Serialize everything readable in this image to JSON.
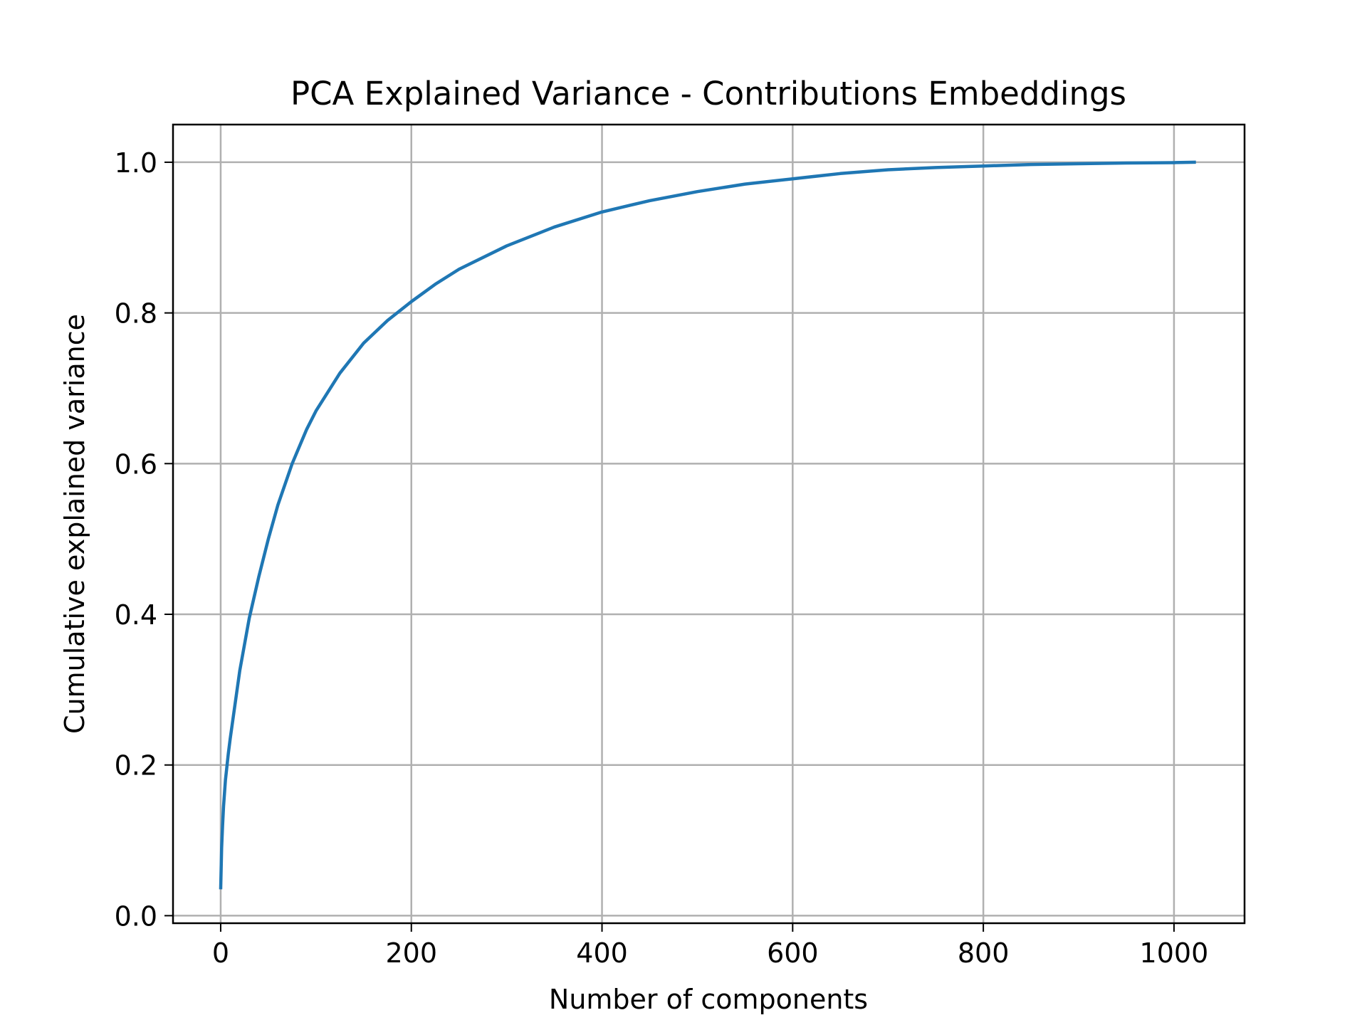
{
  "chart_data": {
    "type": "line",
    "title": "PCA Explained Variance - Contributions Embeddings",
    "xlabel": "Number of components",
    "ylabel": "Cumulative explained variance",
    "xlim": [
      -50,
      1074
    ],
    "ylim": [
      -0.01,
      1.05
    ],
    "x_ticks": [
      0,
      200,
      400,
      600,
      800,
      1000
    ],
    "x_tick_labels": [
      "0",
      "200",
      "400",
      "600",
      "800",
      "1000"
    ],
    "y_ticks": [
      0.0,
      0.2,
      0.4,
      0.6,
      0.8,
      1.0
    ],
    "y_tick_labels": [
      "0.0",
      "0.2",
      "0.4",
      "0.6",
      "0.8",
      "1.0"
    ],
    "grid": true,
    "colors": {
      "series": "#1f77b4"
    },
    "series": [
      {
        "x": [
          0,
          1,
          2,
          3,
          5,
          8,
          10,
          15,
          20,
          25,
          30,
          40,
          50,
          60,
          75,
          90,
          100,
          125,
          150,
          175,
          200,
          225,
          250,
          300,
          350,
          400,
          450,
          500,
          550,
          600,
          650,
          700,
          750,
          800,
          850,
          900,
          950,
          1000,
          1023
        ],
        "y": [
          0.035,
          0.09,
          0.12,
          0.145,
          0.18,
          0.215,
          0.235,
          0.28,
          0.325,
          0.36,
          0.395,
          0.45,
          0.5,
          0.545,
          0.6,
          0.645,
          0.67,
          0.72,
          0.76,
          0.79,
          0.815,
          0.838,
          0.858,
          0.889,
          0.914,
          0.934,
          0.949,
          0.961,
          0.971,
          0.978,
          0.985,
          0.99,
          0.993,
          0.995,
          0.997,
          0.998,
          0.999,
          0.9995,
          1.0
        ]
      }
    ]
  }
}
